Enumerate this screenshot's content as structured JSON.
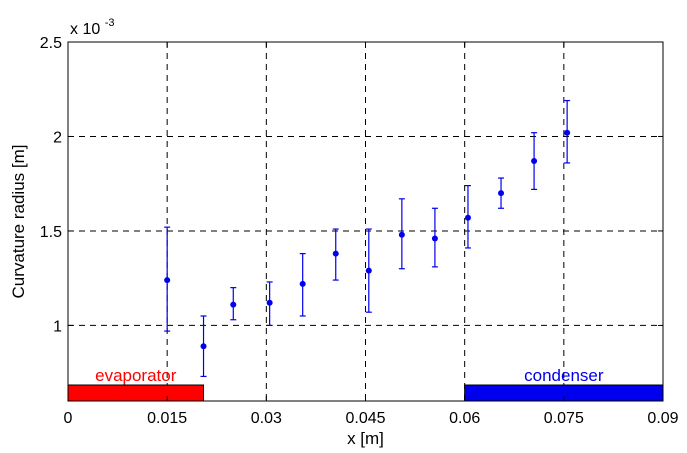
{
  "chart_data": {
    "type": "scatter",
    "xlabel": "x [m]",
    "ylabel": "Curvature radius [m]",
    "y_exponent_label": "x 10",
    "y_exponent_power": "-3",
    "xlim": [
      0,
      0.09
    ],
    "ylim": [
      0.6,
      2.5
    ],
    "xticks": [
      {
        "value": 0,
        "label": "0"
      },
      {
        "value": 0.015,
        "label": "0.015"
      },
      {
        "value": 0.03,
        "label": "0.03"
      },
      {
        "value": 0.045,
        "label": "0.045"
      },
      {
        "value": 0.06,
        "label": "0.06"
      },
      {
        "value": 0.075,
        "label": "0.075"
      },
      {
        "value": 0.09,
        "label": "0.09"
      }
    ],
    "yticks": [
      {
        "value": 1,
        "label": "1"
      },
      {
        "value": 1.5,
        "label": "1.5"
      },
      {
        "value": 2,
        "label": "2"
      },
      {
        "value": 2.5,
        "label": "2.5"
      }
    ],
    "grid": true,
    "grid_style": "dashed",
    "marker_color": "#0000ee",
    "points": [
      {
        "x": 0.015,
        "y": 1.24,
        "ylow": 0.97,
        "yhigh": 1.52
      },
      {
        "x": 0.0205,
        "y": 0.89,
        "ylow": 0.73,
        "yhigh": 1.05
      },
      {
        "x": 0.025,
        "y": 1.11,
        "ylow": 1.03,
        "yhigh": 1.2
      },
      {
        "x": 0.0305,
        "y": 1.12,
        "ylow": 1.0,
        "yhigh": 1.23
      },
      {
        "x": 0.0355,
        "y": 1.22,
        "ylow": 1.05,
        "yhigh": 1.38
      },
      {
        "x": 0.0405,
        "y": 1.38,
        "ylow": 1.24,
        "yhigh": 1.51
      },
      {
        "x": 0.0455,
        "y": 1.29,
        "ylow": 1.07,
        "yhigh": 1.51
      },
      {
        "x": 0.0505,
        "y": 1.48,
        "ylow": 1.3,
        "yhigh": 1.67
      },
      {
        "x": 0.0555,
        "y": 1.46,
        "ylow": 1.31,
        "yhigh": 1.62
      },
      {
        "x": 0.0605,
        "y": 1.57,
        "ylow": 1.41,
        "yhigh": 1.74
      },
      {
        "x": 0.0655,
        "y": 1.7,
        "ylow": 1.62,
        "yhigh": 1.78
      },
      {
        "x": 0.0705,
        "y": 1.87,
        "ylow": 1.72,
        "yhigh": 2.02
      },
      {
        "x": 0.0755,
        "y": 2.02,
        "ylow": 1.86,
        "yhigh": 2.19
      }
    ],
    "regions": [
      {
        "label": "evaporator",
        "x_start": 0,
        "x_end": 0.0205,
        "color": "#ff0000"
      },
      {
        "label": "condenser",
        "x_start": 0.06,
        "x_end": 0.09,
        "color": "#0000ee"
      }
    ]
  }
}
